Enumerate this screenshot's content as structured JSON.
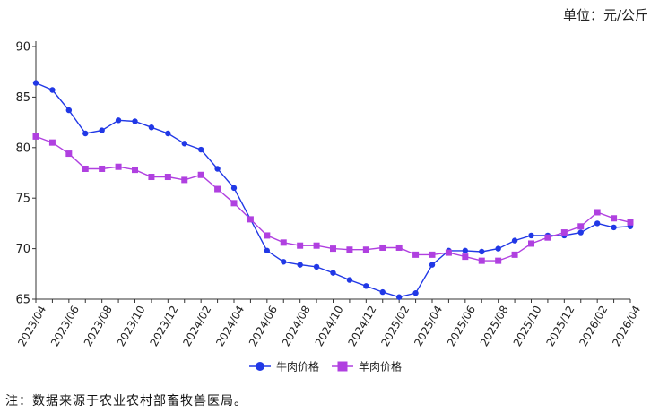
{
  "unit_label": "单位：元/公斤",
  "note": "注：数据来源于农业农村部畜牧兽医局。",
  "chart_data": {
    "type": "line",
    "title": "",
    "xlabel": "",
    "ylabel": "",
    "ylim": [
      65,
      90
    ],
    "yticks": [
      65,
      70,
      75,
      80,
      85,
      90
    ],
    "x": [
      "2023/04",
      "2023/05",
      "2023/06",
      "2023/07",
      "2023/08",
      "2023/09",
      "2023/10",
      "2023/11",
      "2023/12",
      "2024/01",
      "2024/02",
      "2024/03",
      "2024/04",
      "2024/05",
      "2024/06",
      "2024/07",
      "2024/08",
      "2024/09",
      "2024/10",
      "2024/11",
      "2024/12",
      "2025/01",
      "2025/02",
      "2025/03",
      "2025/04",
      "2025/05",
      "2025/06",
      "2025/07",
      "2025/08",
      "2025/09",
      "2025/10",
      "2025/11",
      "2025/12",
      "2026/01",
      "2026/02",
      "2026/03",
      "2026/04"
    ],
    "xtick_labels": [
      "2023/04",
      "2023/06",
      "2023/08",
      "2023/10",
      "2023/12",
      "2024/02",
      "2024/04",
      "2024/06",
      "2024/08",
      "2024/10",
      "2024/12",
      "2025/02",
      "2025/04",
      "2025/06",
      "2025/08",
      "2025/10",
      "2025/12",
      "2026/02",
      "2026/04"
    ],
    "grid": false,
    "legend_position": "bottom-center",
    "series": [
      {
        "name": "牛肉价格",
        "color": "#2138e6",
        "marker": "circle",
        "values": [
          86.4,
          85.7,
          83.7,
          81.4,
          81.7,
          82.7,
          82.6,
          82.0,
          81.4,
          80.4,
          79.8,
          77.9,
          76.0,
          72.9,
          69.8,
          68.7,
          68.4,
          68.2,
          67.6,
          66.9,
          66.3,
          65.7,
          65.2,
          65.6,
          68.4,
          69.8,
          69.8,
          69.7,
          70.0,
          70.8,
          71.3,
          71.3,
          71.3,
          71.6,
          72.5,
          72.1,
          72.2
        ]
      },
      {
        "name": "羊肉价格",
        "color": "#b040e0",
        "marker": "square",
        "values": [
          81.1,
          80.5,
          79.4,
          77.9,
          77.9,
          78.1,
          77.8,
          77.1,
          77.1,
          76.8,
          77.3,
          75.9,
          74.5,
          72.9,
          71.3,
          70.6,
          70.3,
          70.3,
          70.0,
          69.9,
          69.9,
          70.1,
          70.1,
          69.4,
          69.4,
          69.6,
          69.2,
          68.8,
          68.8,
          69.4,
          70.5,
          71.1,
          71.6,
          72.2,
          73.6,
          73.0,
          72.6
        ]
      }
    ]
  }
}
